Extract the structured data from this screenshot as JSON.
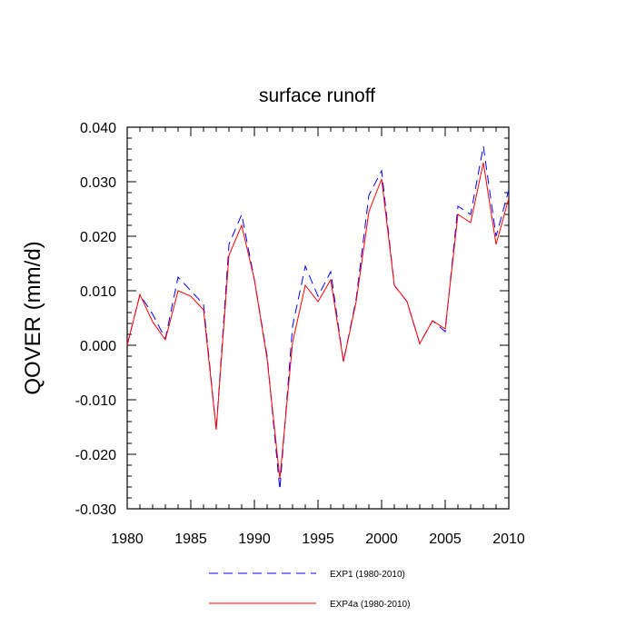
{
  "chart_data": {
    "type": "line",
    "title": "surface runoff",
    "xlabel": "",
    "ylabel": "QOVER  (mm/d)",
    "xlim": [
      1980,
      2010
    ],
    "ylim": [
      -0.03,
      0.04
    ],
    "x_ticks": [
      "1980",
      "1985",
      "1990",
      "1995",
      "2000",
      "2005",
      "2010"
    ],
    "y_ticks": [
      "0.040",
      "0.030",
      "0.020",
      "0.010",
      "0.000",
      "-0.010",
      "-0.020",
      "-0.030"
    ],
    "grid": false,
    "legend_placement": "bottom",
    "x": [
      1980,
      1981,
      1982,
      1983,
      1984,
      1985,
      1986,
      1987,
      1988,
      1989,
      1990,
      1991,
      1992,
      1993,
      1994,
      1995,
      1996,
      1997,
      1998,
      1999,
      2000,
      2001,
      2002,
      2003,
      2004,
      2005,
      2006,
      2007,
      2008,
      2009,
      2010
    ],
    "series": [
      {
        "name": "EXP1 (1980-2010)",
        "color": "#0000ff",
        "dash": "dashed",
        "values": [
          0.0,
          0.0093,
          0.0057,
          0.0012,
          0.0125,
          0.01,
          0.0075,
          -0.0155,
          0.0185,
          0.024,
          0.012,
          -0.002,
          -0.0265,
          0.0035,
          0.0145,
          0.009,
          0.0135,
          -0.003,
          0.0085,
          0.0275,
          0.032,
          0.011,
          0.008,
          0.0003,
          0.0045,
          0.0025,
          0.0255,
          0.024,
          0.0365,
          0.02,
          0.0285
        ]
      },
      {
        "name": "EXP4a (1980-2010)",
        "color": "#ff0000",
        "dash": "solid",
        "values": [
          0.0,
          0.0093,
          0.0043,
          0.001,
          0.01,
          0.009,
          0.0065,
          -0.0155,
          0.0165,
          0.022,
          0.012,
          -0.0025,
          -0.0245,
          0.0005,
          0.011,
          0.008,
          0.012,
          -0.003,
          0.008,
          0.0245,
          0.0305,
          0.011,
          0.008,
          0.0003,
          0.0045,
          0.003,
          0.024,
          0.0225,
          0.0335,
          0.0185,
          0.027
        ]
      }
    ]
  }
}
